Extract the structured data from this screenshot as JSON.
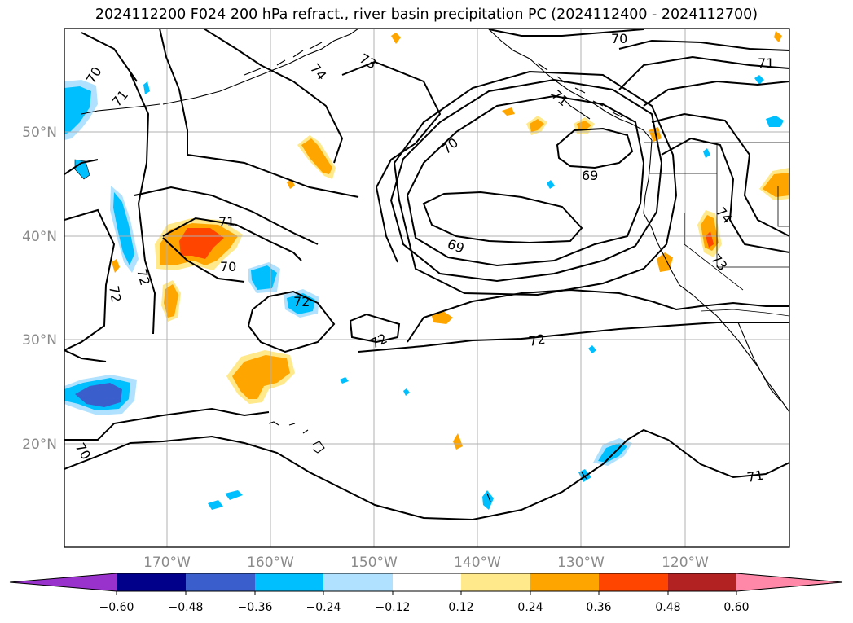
{
  "title": "2024112200 F024 200 hPa refract., river basin precipitation PC (2024112400 - 2024112700)",
  "map": {
    "lon_range": [
      -180,
      -110
    ],
    "lat_range": [
      10,
      60
    ],
    "lat_ticks": [
      {
        "value": 50,
        "label": "50°N"
      },
      {
        "value": 40,
        "label": "40°N"
      },
      {
        "value": 30,
        "label": "30°N"
      },
      {
        "value": 20,
        "label": "20°N"
      }
    ],
    "lon_ticks": [
      {
        "value": -170,
        "label": "170°W"
      },
      {
        "value": -160,
        "label": "160°W"
      },
      {
        "value": -150,
        "label": "150°W"
      },
      {
        "value": -140,
        "label": "140°W"
      },
      {
        "value": -130,
        "label": "130°W"
      },
      {
        "value": -120,
        "label": "120°W"
      }
    ],
    "contour_labels": [
      "70",
      "71",
      "72",
      "73",
      "74",
      "69"
    ]
  },
  "colorbar": {
    "ticks": [
      "−0.60",
      "−0.48",
      "−0.36",
      "−0.24",
      "−0.12",
      "0.12",
      "0.24",
      "0.36",
      "0.48",
      "0.60"
    ],
    "colors": {
      "under": "#9932cc",
      "c1": "#00008b",
      "c2": "#3a5fcd",
      "c3": "#00bfff",
      "c4": "#b0e2ff",
      "c5": "#ffffff",
      "c6": "#ffe98a",
      "c7": "#ffa500",
      "c8": "#ff4500",
      "c9": "#b22222",
      "over": "#ff88a8"
    }
  }
}
